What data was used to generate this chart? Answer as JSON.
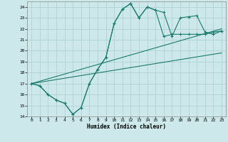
{
  "title": "",
  "xlabel": "Humidex (Indice chaleur)",
  "xlim": [
    -0.5,
    23.5
  ],
  "ylim": [
    14,
    24.5
  ],
  "yticks": [
    14,
    15,
    16,
    17,
    18,
    19,
    20,
    21,
    22,
    23,
    24
  ],
  "xticks": [
    0,
    1,
    2,
    3,
    4,
    5,
    6,
    7,
    8,
    9,
    10,
    11,
    12,
    13,
    14,
    15,
    16,
    17,
    18,
    19,
    20,
    21,
    22,
    23
  ],
  "bg_color": "#cce8ea",
  "grid_color": "#aacccc",
  "line_color": "#1a7a6e",
  "line1_x": [
    0,
    1,
    2,
    3,
    4,
    5,
    6,
    7,
    8,
    9,
    10,
    11,
    12,
    13,
    14,
    15,
    16,
    17,
    18,
    19,
    20,
    21,
    22,
    23
  ],
  "line1_y": [
    17.0,
    16.8,
    16.0,
    15.5,
    15.2,
    14.2,
    14.8,
    17.0,
    18.3,
    19.4,
    22.5,
    23.8,
    24.3,
    23.0,
    24.0,
    23.7,
    23.5,
    21.3,
    23.0,
    23.1,
    23.2,
    21.7,
    21.5,
    21.8
  ],
  "line2_x": [
    0,
    1,
    2,
    3,
    4,
    5,
    6,
    7,
    8,
    9,
    10,
    11,
    12,
    13,
    14,
    15,
    16,
    17,
    18,
    19,
    20,
    21,
    22,
    23
  ],
  "line2_y": [
    17.0,
    16.8,
    16.0,
    15.5,
    15.2,
    14.2,
    14.8,
    17.0,
    18.3,
    19.4,
    22.5,
    23.8,
    24.3,
    23.0,
    24.0,
    23.7,
    21.3,
    21.5,
    21.5,
    21.5,
    21.5,
    21.5,
    21.7,
    21.8
  ],
  "line3_x": [
    0,
    23
  ],
  "line3_y": [
    17.0,
    22.0
  ],
  "line4_x": [
    0,
    23
  ],
  "line4_y": [
    17.0,
    19.8
  ]
}
